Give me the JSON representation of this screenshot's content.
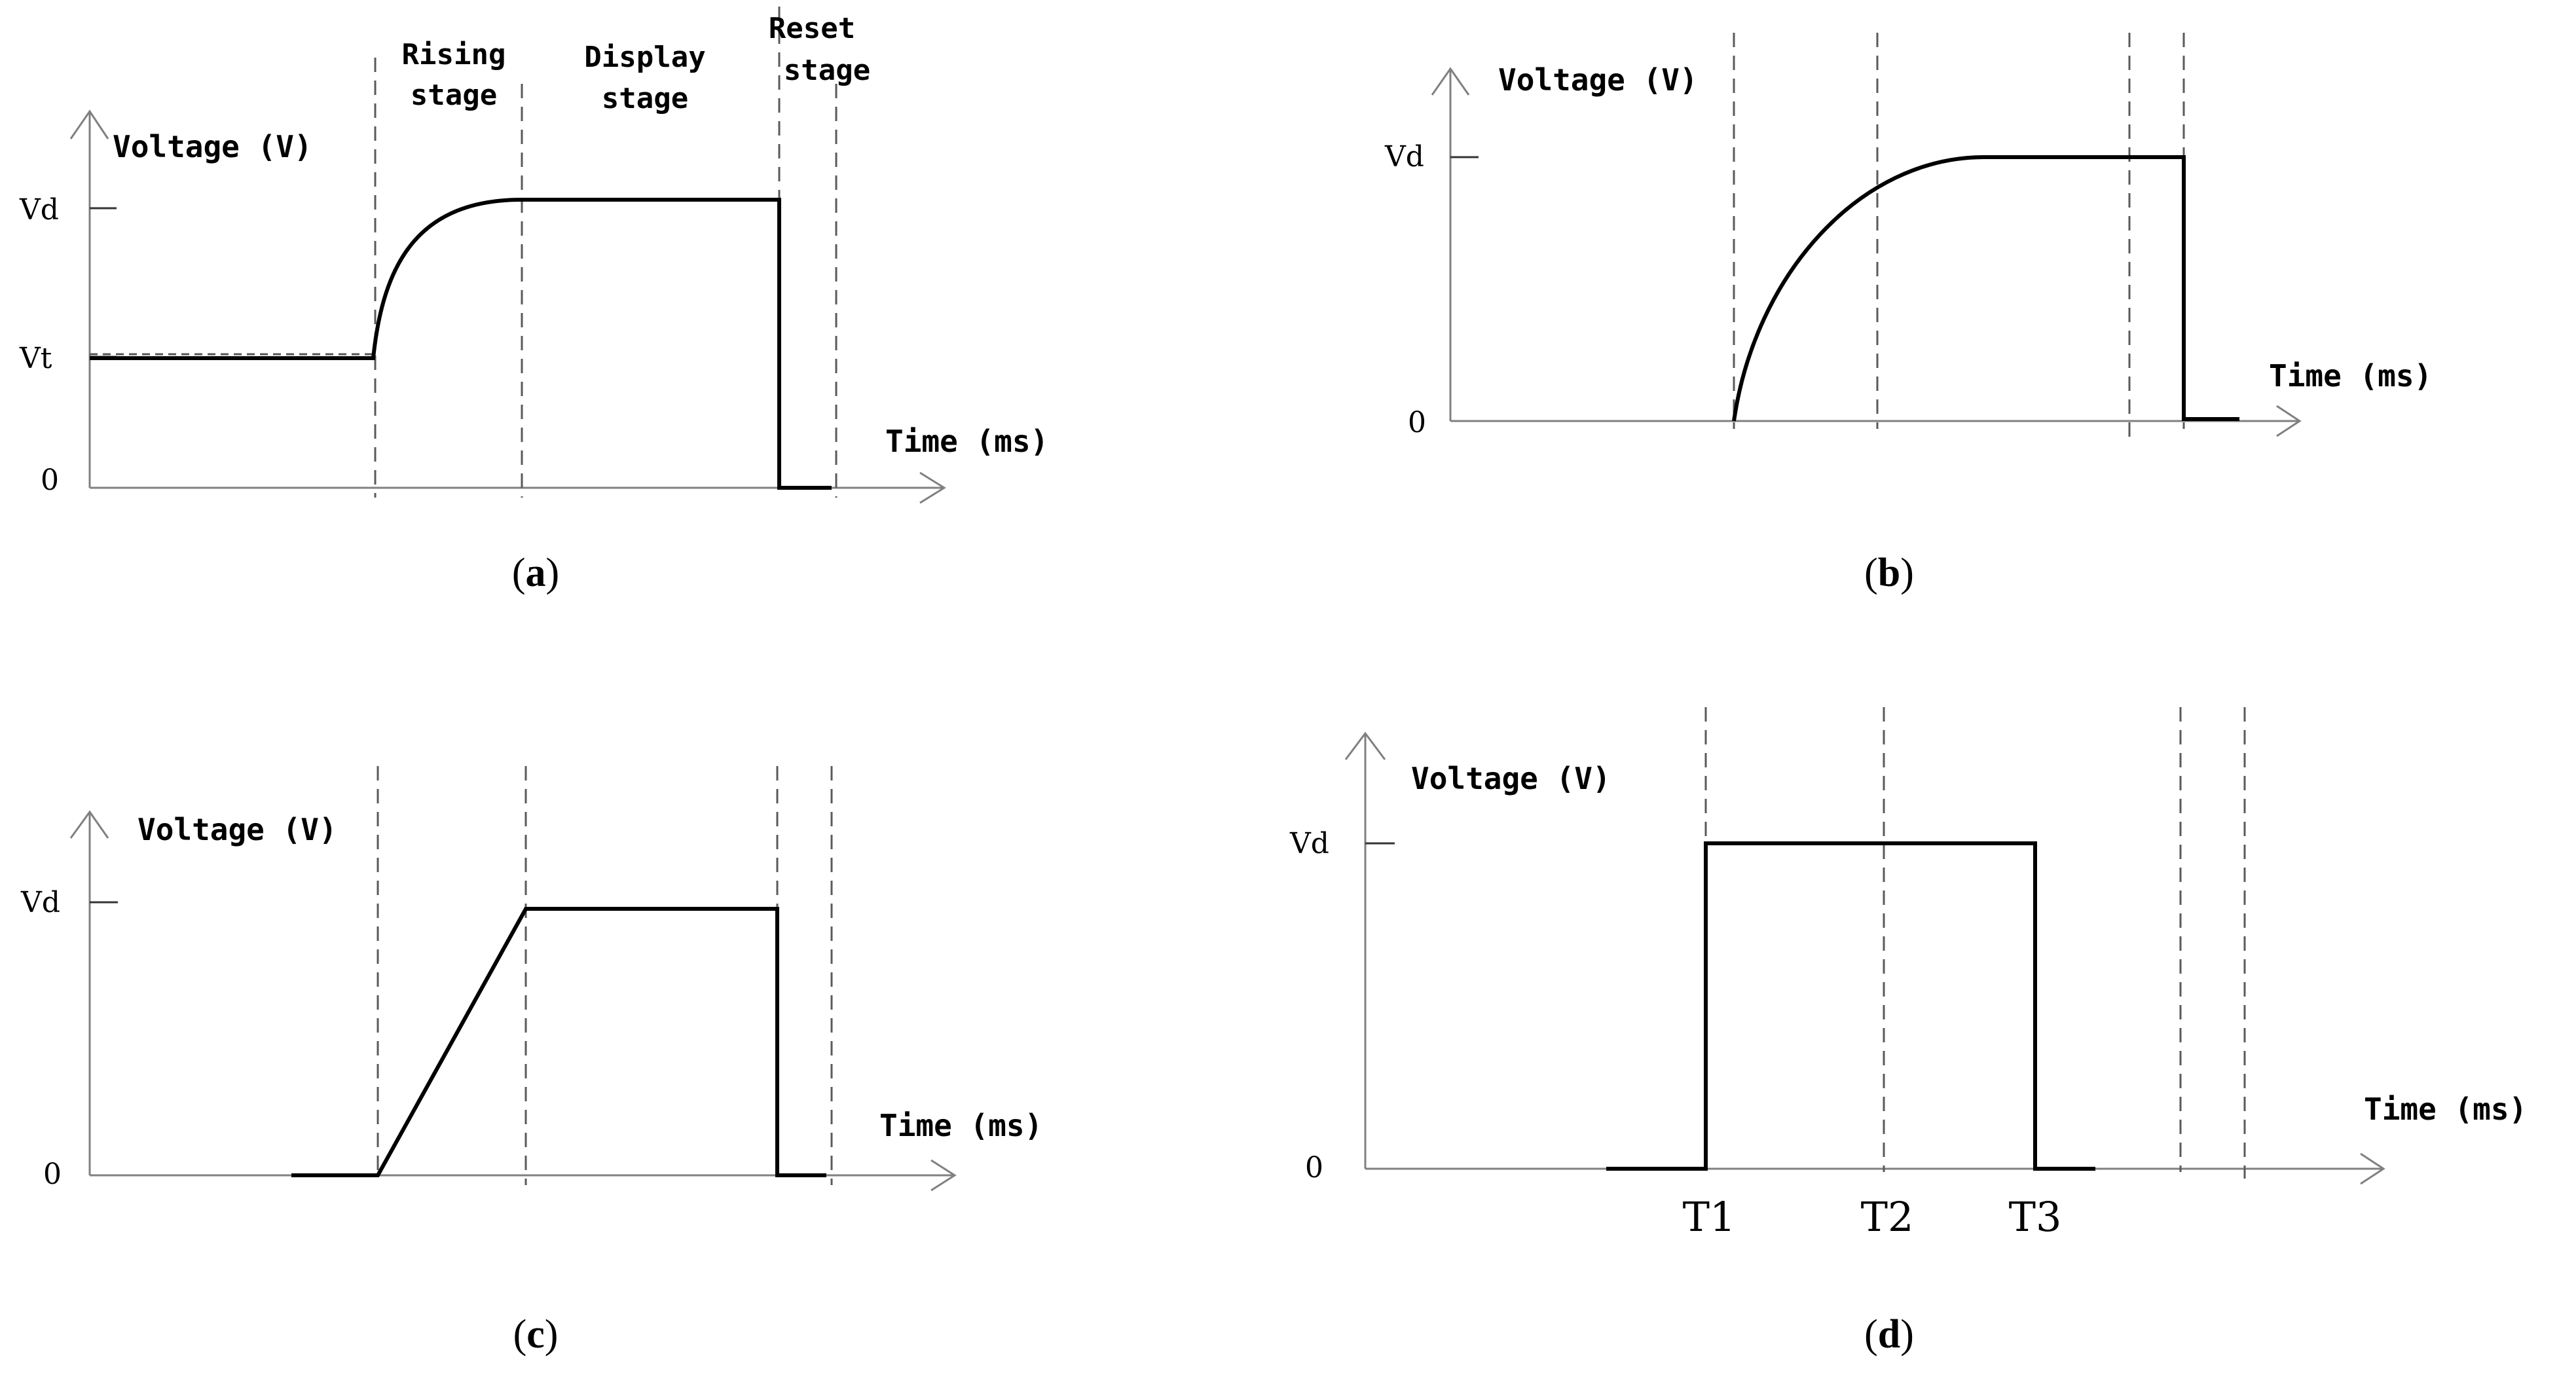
{
  "chart_data": [
    {
      "id": "a",
      "type": "line",
      "caption_letter": "a",
      "ylabel": "Voltage (V)",
      "xlabel": "Time (ms)",
      "ytick_labels": [
        "Vd",
        "Vt",
        "0"
      ],
      "stage_labels": [
        {
          "lines": [
            "Rising",
            "stage"
          ]
        },
        {
          "lines": [
            "Display",
            "stage"
          ]
        },
        {
          "lines": [
            "Reset",
            "stage"
          ]
        }
      ],
      "x_labels": []
    },
    {
      "id": "b",
      "type": "line",
      "caption_letter": "b",
      "ylabel": "Voltage (V)",
      "xlabel": "Time (ms)",
      "ytick_labels": [
        "Vd",
        "0"
      ],
      "stage_labels": [],
      "x_labels": []
    },
    {
      "id": "c",
      "type": "line",
      "caption_letter": "c",
      "ylabel": "Voltage (V)",
      "xlabel": "Time (ms)",
      "ytick_labels": [
        "Vd",
        "0"
      ],
      "stage_labels": [],
      "x_labels": []
    },
    {
      "id": "d",
      "type": "line",
      "caption_letter": "d",
      "ylabel": "Voltage (V)",
      "xlabel": "Time (ms)",
      "ytick_labels": [
        "Vd",
        "0"
      ],
      "stage_labels": [],
      "x_labels": [
        "T1",
        "T2",
        "T3"
      ]
    }
  ]
}
